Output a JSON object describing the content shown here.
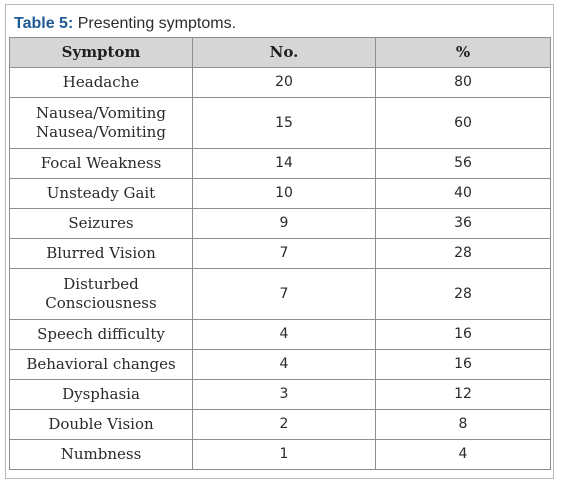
{
  "caption": {
    "label": "Table 5:",
    "text": " Presenting symptoms."
  },
  "table": {
    "headers": [
      "Symptom",
      "No.",
      "%"
    ],
    "rows": [
      {
        "symptom": [
          "Headache"
        ],
        "no": "20",
        "pct": "80"
      },
      {
        "symptom": [
          "Nausea/Vomiting",
          "Nausea/Vomiting"
        ],
        "no": "15",
        "pct": "60"
      },
      {
        "symptom": [
          "Focal Weakness"
        ],
        "no": "14",
        "pct": "56"
      },
      {
        "symptom": [
          "Unsteady Gait"
        ],
        "no": "10",
        "pct": "40"
      },
      {
        "symptom": [
          "Seizures"
        ],
        "no": "9",
        "pct": "36"
      },
      {
        "symptom": [
          "Blurred Vision"
        ],
        "no": "7",
        "pct": "28"
      },
      {
        "symptom": [
          "Disturbed",
          "Consciousness"
        ],
        "no": "7",
        "pct": "28"
      },
      {
        "symptom": [
          "Speech difficulty"
        ],
        "no": "4",
        "pct": "16"
      },
      {
        "symptom": [
          "Behavioral changes"
        ],
        "no": "4",
        "pct": "16"
      },
      {
        "symptom": [
          "Dysphasia"
        ],
        "no": "3",
        "pct": "12"
      },
      {
        "symptom": [
          "Double Vision"
        ],
        "no": "2",
        "pct": "8"
      },
      {
        "symptom": [
          "Numbness"
        ],
        "no": "1",
        "pct": "4"
      }
    ]
  },
  "colors": {
    "caption_label": "#1e5a93",
    "header_bg": "#d6d6d6",
    "border": "#8e8e8e"
  }
}
